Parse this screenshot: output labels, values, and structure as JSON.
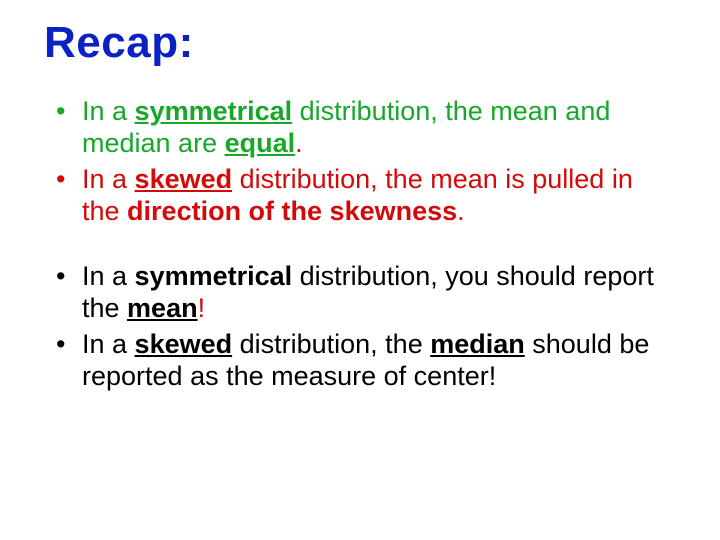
{
  "colors": {
    "title": "#0a22c4",
    "green": "#17a82a",
    "red": "#d40a0a",
    "black": "#000000"
  },
  "title": "Recap:",
  "bullets": [
    {
      "spans": [
        {
          "text": "In a ",
          "color": "green"
        },
        {
          "text": "symmetrical",
          "color": "green",
          "bold": true,
          "underline": true
        },
        {
          "text": " distribution, the mean and median are ",
          "color": "green"
        },
        {
          "text": "equal",
          "color": "green",
          "bold": true,
          "underline": true
        },
        {
          "text": ".",
          "color": "red"
        }
      ]
    },
    {
      "spans": [
        {
          "text": "In a ",
          "color": "red"
        },
        {
          "text": "skewed",
          "color": "red",
          "bold": true,
          "underline": true
        },
        {
          "text": " distribution, the mean is pulled in the ",
          "color": "red"
        },
        {
          "text": "direction of the skewness",
          "color": "red",
          "bold": true
        },
        {
          "text": ".",
          "color": "red"
        }
      ]
    },
    {
      "gap": true
    },
    {
      "spans": [
        {
          "text": "In a ",
          "color": "black"
        },
        {
          "text": "symmetrical ",
          "color": "black",
          "bold": true
        },
        {
          "text": " distribution, you should report the ",
          "color": "black"
        },
        {
          "text": "mean",
          "color": "black",
          "bold": true,
          "underline": true
        },
        {
          "text": "!",
          "color": "red"
        }
      ]
    },
    {
      "spans": [
        {
          "text": "In a ",
          "color": "black"
        },
        {
          "text": "skewed",
          "color": "black",
          "bold": true,
          "underline": true
        },
        {
          "text": " distribution, the ",
          "color": "black"
        },
        {
          "text": "median",
          "color": "black",
          "bold": true,
          "underline": true
        },
        {
          "text": " should be reported as the measure of center!",
          "color": "black"
        }
      ]
    }
  ]
}
